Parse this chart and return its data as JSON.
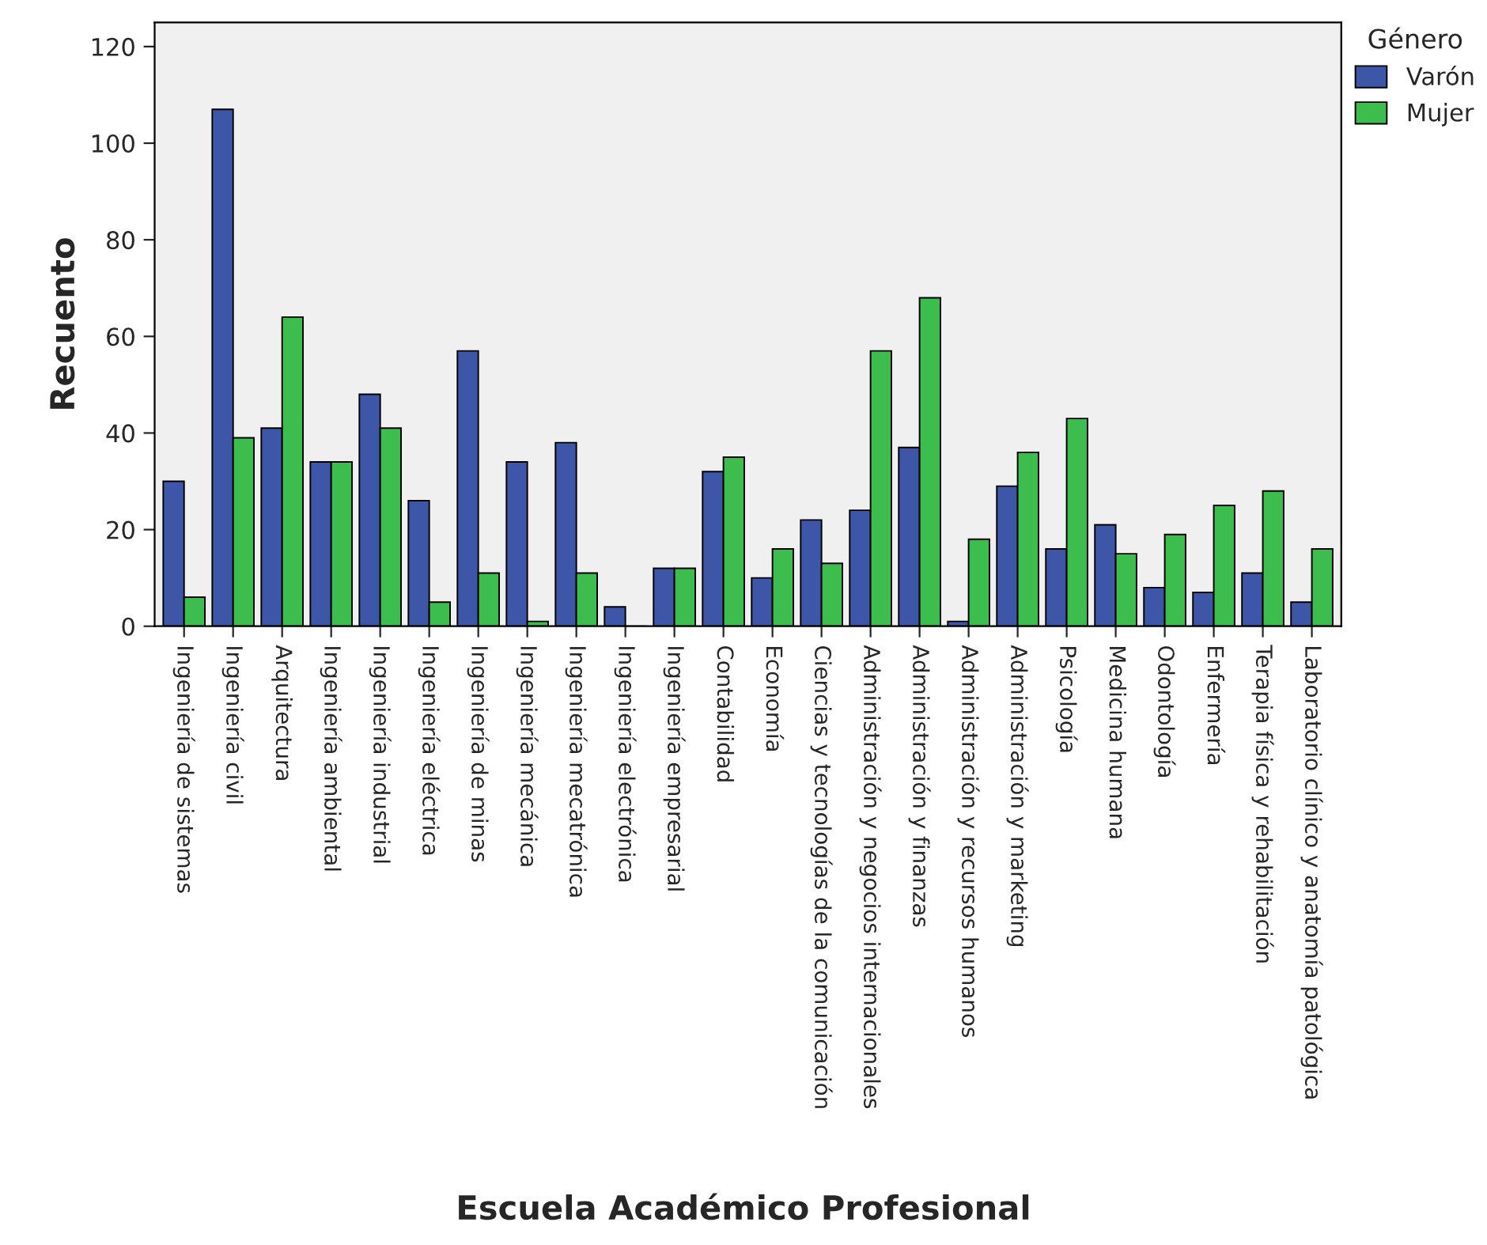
{
  "chart_data": {
    "type": "bar",
    "xlabel": "Escuela Académico Profesional",
    "ylabel": "Recuento",
    "legend_title": "Género",
    "legend": "top right",
    "grid": false,
    "categories": [
      "Ingeniería de sistemas",
      "Ingeniería civil",
      "Arquitectura",
      "Ingeniería ambiental",
      "Ingeniería industrial",
      "Ingeniería eléctrica",
      "Ingeniería de minas",
      "Ingeniería mecánica",
      "Ingeniería mecatrónica",
      "Ingeniería electrónica",
      "Ingeniería empresarial",
      "Contabilidad",
      "Economía",
      "Ciencias y tecnologías de la comunicación",
      "Administración y negocios internacionales",
      "Administración y finanzas",
      "Administración y recursos humanos",
      "Administración y marketing",
      "Psicología",
      "Medicina humana",
      "Odontología",
      "Enfermería",
      "Terapia física y rehabilitación",
      "Laboratorio clínico y anatomía patológica"
    ],
    "series": [
      {
        "name": "Varón",
        "color": "#3e56a8",
        "values": [
          30,
          107,
          41,
          34,
          48,
          26,
          57,
          34,
          38,
          4,
          12,
          32,
          10,
          22,
          24,
          37,
          1,
          29,
          16,
          21,
          8,
          7,
          11,
          5
        ]
      },
      {
        "name": "Mujer",
        "color": "#3dbd4e",
        "values": [
          6,
          39,
          64,
          34,
          41,
          5,
          11,
          1,
          11,
          0,
          12,
          35,
          16,
          13,
          57,
          68,
          18,
          36,
          43,
          15,
          19,
          25,
          28,
          16
        ]
      }
    ],
    "ylim": [
      0,
      125
    ],
    "yticks": [
      0,
      20,
      40,
      60,
      80,
      100,
      120
    ]
  }
}
